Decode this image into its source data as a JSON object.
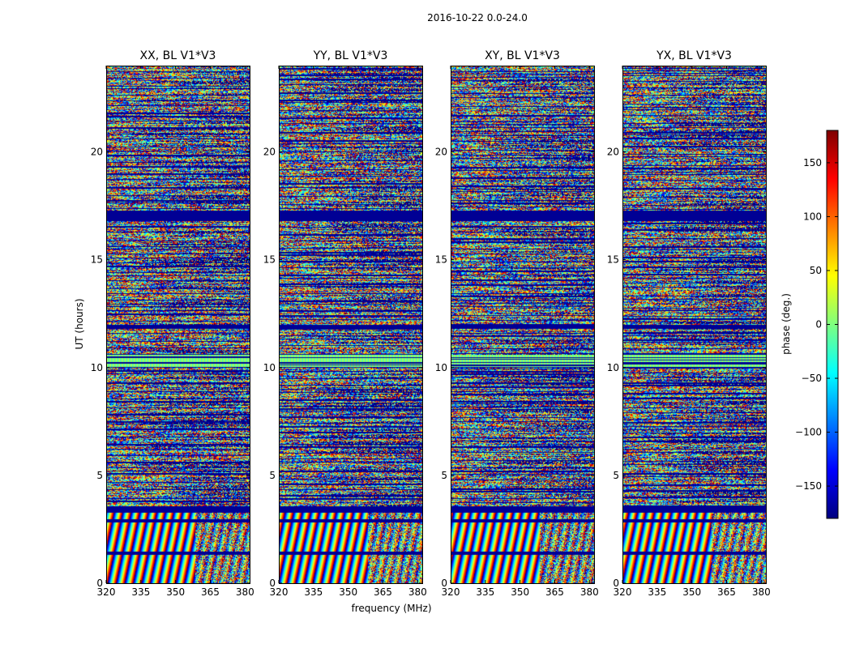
{
  "figure": {
    "suptitle": "2016-10-22 0.0-24.0"
  },
  "chart_data": {
    "type": "heatmap",
    "title": "2016-10-22 0.0-24.0",
    "xlabel": "frequency (MHz)",
    "ylabel": "UT (hours)",
    "xlim": [
      320,
      382
    ],
    "ylim": [
      0,
      24
    ],
    "xticks": [
      320,
      335,
      350,
      365,
      380
    ],
    "yticks": [
      0,
      5,
      10,
      15,
      20
    ],
    "colorbar": {
      "label": "phase (deg.)",
      "range": [
        -180,
        180
      ],
      "ticks": [
        150,
        100,
        50,
        0,
        -50,
        -100,
        -150
      ],
      "tick_labels": [
        "150",
        "100",
        "50",
        "0",
        "−50",
        "−100",
        "−150"
      ],
      "colormap": "jet",
      "colors": [
        "#00007f",
        "#0000ff",
        "#007fff",
        "#00ffff",
        "#7fff7f",
        "#ffff00",
        "#ff7f00",
        "#ff0000",
        "#7f0000"
      ]
    },
    "panels": [
      {
        "title": "XX, BL V1*V3",
        "seed": 11
      },
      {
        "title": "YY, BL V1*V3",
        "seed": 23
      },
      {
        "title": "XY, BL V1*V3",
        "seed": 37
      },
      {
        "title": "YX, BL V1*V3",
        "seed": 53
      }
    ],
    "structure": {
      "fringe_band_hours": [
        0,
        3.3
      ],
      "flagged_band_hours": [
        [
          3.3,
          3.6
        ],
        [
          11.8,
          12.0
        ],
        [
          16.8,
          17.3
        ]
      ],
      "uniform_band_hours": [
        10.0,
        10.6
      ]
    }
  }
}
